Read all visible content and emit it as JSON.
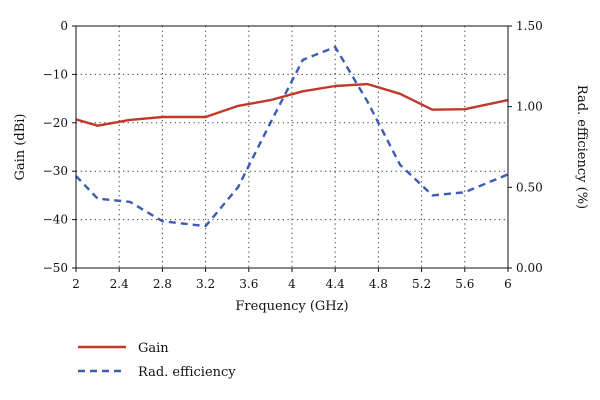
{
  "chart_data": {
    "type": "line",
    "title": "",
    "xlabel": "Frequency (GHz)",
    "ylabel_left": "Gain (dBi)",
    "ylabel_right": "Rad. efficiency (%)",
    "xlim": [
      2,
      6
    ],
    "ylim_left": [
      -50,
      0
    ],
    "ylim_right": [
      0,
      1.5
    ],
    "x_ticks": [
      "2",
      "2.4",
      "2.8",
      "3.2",
      "3.6",
      "4",
      "4.4",
      "4.8",
      "5.2",
      "5.6",
      "6"
    ],
    "y_left_ticks": [
      "0",
      "−10",
      "−20",
      "−30",
      "−40",
      "−50"
    ],
    "y_right_ticks": [
      "1.50",
      "1.00",
      "0.50",
      "0.00"
    ],
    "grid": true,
    "legend_position": "bottom-left",
    "series": [
      {
        "name": "Gain",
        "axis": "left",
        "color": "#c0392b",
        "style": "solid",
        "x": [
          2.0,
          2.2,
          2.5,
          2.8,
          3.2,
          3.5,
          3.8,
          4.1,
          4.4,
          4.7,
          5.0,
          5.3,
          5.6,
          6.0
        ],
        "y": [
          -19.3,
          -20.6,
          -19.4,
          -18.8,
          -18.8,
          -16.5,
          -15.3,
          -13.5,
          -12.4,
          -12.0,
          -14.0,
          -17.3,
          -17.2,
          -15.3
        ]
      },
      {
        "name": "Rad. efficiency",
        "axis": "right",
        "color": "#3b5bb5",
        "style": "dashed",
        "x": [
          2.0,
          2.2,
          2.5,
          2.8,
          3.2,
          3.5,
          3.8,
          4.1,
          4.4,
          4.7,
          5.0,
          5.3,
          5.6,
          6.0
        ],
        "y": [
          0.57,
          0.43,
          0.41,
          0.29,
          0.26,
          0.5,
          0.9,
          1.29,
          1.37,
          1.03,
          0.64,
          0.45,
          0.47,
          0.58
        ]
      }
    ]
  }
}
